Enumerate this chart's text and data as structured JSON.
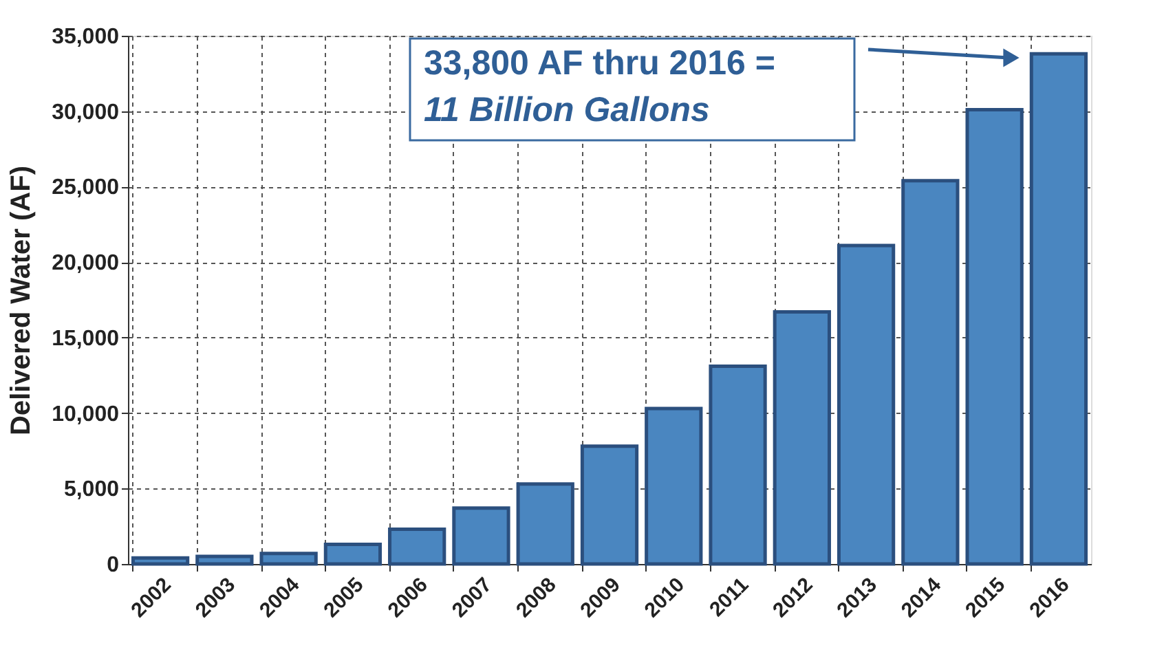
{
  "chart_data": {
    "type": "bar",
    "ylabel": "Delivered Water  (AF)",
    "categories": [
      "2002",
      "2003",
      "2004",
      "2005",
      "2006",
      "2007",
      "2008",
      "2009",
      "2010",
      "2011",
      "2012",
      "2013",
      "2014",
      "2015",
      "2016"
    ],
    "values": [
      400,
      500,
      700,
      1300,
      2300,
      3700,
      5300,
      7800,
      10300,
      13100,
      16700,
      21100,
      25400,
      30100,
      33800
    ],
    "color": "#4a86c0",
    "ylim": [
      0,
      35000
    ],
    "yticks": [
      0,
      {
        "value": 5000,
        "label": "5,000"
      },
      {
        "value": 10000,
        "label": "10,000"
      },
      {
        "value": 15000,
        "label": "15,000"
      },
      {
        "value": 20000,
        "label": "20,000"
      },
      {
        "value": 25000,
        "label": "25,000"
      },
      {
        "value": 30000,
        "label": "30,000"
      },
      {
        "value": 35000,
        "label": "35,000"
      }
    ],
    "grid": true,
    "annotations": [
      "33,800 AF thru 2016 =\n11 Billion Gallons"
    ]
  }
}
